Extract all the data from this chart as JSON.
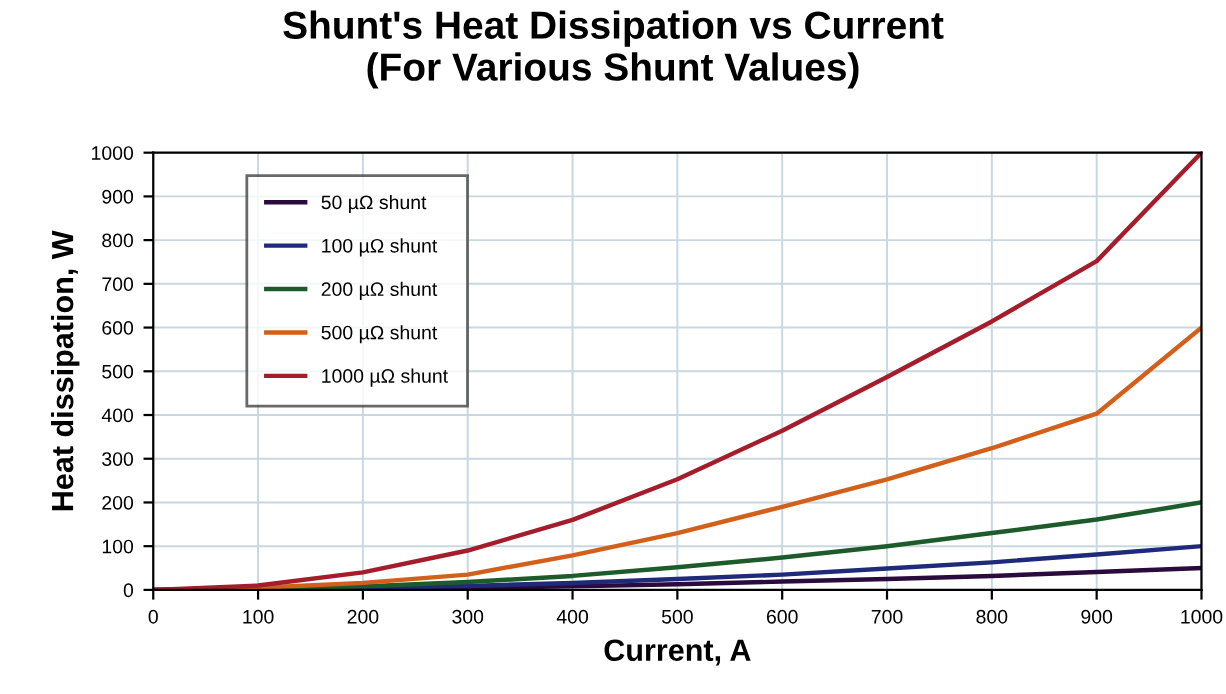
{
  "chart_data": {
    "type": "line",
    "title": "Shunt's Heat Dissipation vs Current\n(For Various Shunt Values)",
    "xlabel": "Current, A",
    "ylabel": "Heat dissipation, W",
    "x": [
      0,
      100,
      200,
      300,
      400,
      500,
      600,
      700,
      800,
      900,
      1000
    ],
    "series": [
      {
        "name": "50 µΩ shunt",
        "color": "#2b0a3d",
        "x": [
          0,
          200,
          300,
          400,
          500,
          600,
          700,
          800,
          900,
          1000
        ],
        "values": [
          0,
          2,
          5,
          8,
          13,
          19,
          25,
          32,
          41,
          50
        ]
      },
      {
        "name": "100 µΩ shunt",
        "color": "#1f2a7a",
        "x": [
          0,
          200,
          300,
          400,
          500,
          600,
          700,
          800,
          900,
          1000
        ],
        "values": [
          0,
          4,
          9,
          16,
          25,
          35,
          49,
          63,
          81,
          100
        ]
      },
      {
        "name": "200 µΩ shunt",
        "color": "#1d5c2a",
        "values": [
          0,
          2,
          8,
          18,
          32,
          52,
          74,
          100,
          130,
          161,
          200
        ]
      },
      {
        "name": "500 µΩ shunt",
        "color": "#d2601a",
        "values": [
          0,
          5,
          16,
          35,
          79,
          130,
          190,
          253,
          324,
          403,
          600
        ]
      },
      {
        "name": "1000 µΩ shunt",
        "color": "#a51c2a",
        "values": [
          0,
          10,
          40,
          90,
          160,
          253,
          364,
          487,
          614,
          752,
          1000
        ]
      }
    ],
    "xlim": [
      0,
      1000
    ],
    "ylim": [
      0,
      1000
    ],
    "xticks": [
      0,
      100,
      200,
      300,
      400,
      500,
      600,
      700,
      800,
      900,
      1000
    ],
    "yticks": [
      0,
      100,
      200,
      300,
      400,
      500,
      600,
      700,
      800,
      900,
      1000
    ],
    "grid": true,
    "legend": "top left",
    "marker": "none",
    "line_style": "solid"
  }
}
